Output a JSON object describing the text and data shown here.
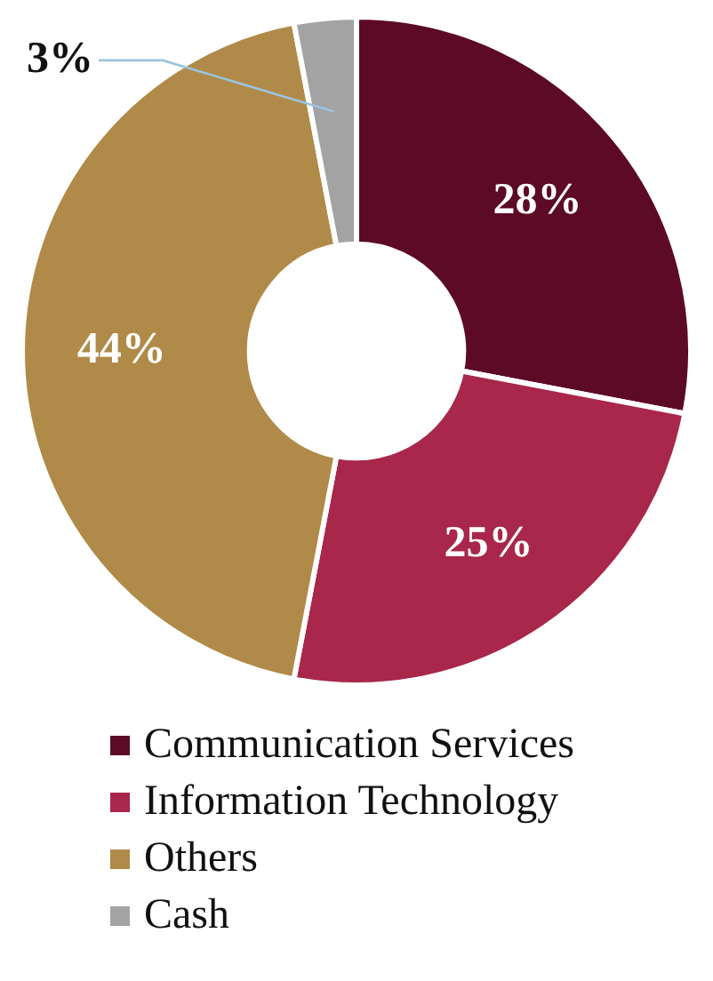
{
  "chart_data": {
    "type": "donut",
    "categories": [
      "Communication Services",
      "Information Technology",
      "Others",
      "Cash"
    ],
    "values": [
      28,
      25,
      44,
      3
    ],
    "colors": [
      "#5c0a26",
      "#a8274a",
      "#b08a48",
      "#a3a3a3"
    ],
    "value_labels": [
      "28%",
      "25%",
      "44%",
      "3%"
    ],
    "legend": "bottom"
  }
}
